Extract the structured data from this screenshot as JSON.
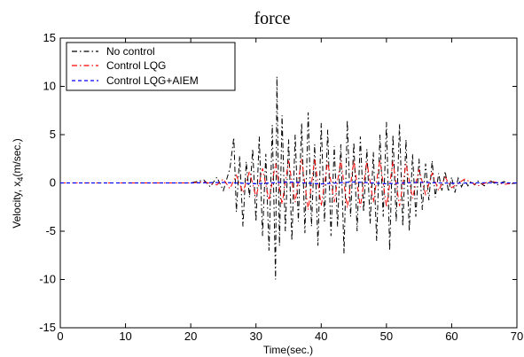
{
  "chart_data": {
    "type": "line",
    "title": "force",
    "xlabel": "Time(sec.)",
    "ylabel_main": "Velocity, x",
    "ylabel_sub": "4",
    "ylabel_unit": "(m/sec.)",
    "xlim": [
      0,
      70
    ],
    "ylim": [
      -15,
      15
    ],
    "x_ticks": [
      0,
      10,
      20,
      30,
      40,
      50,
      60,
      70
    ],
    "y_ticks": [
      -15,
      -10,
      -5,
      0,
      5,
      10,
      15
    ],
    "x_tick_labels": [
      "0",
      "10",
      "20",
      "30",
      "40",
      "50",
      "60",
      "70"
    ],
    "y_tick_labels": [
      "-15",
      "-10",
      "-5",
      "0",
      "5",
      "10",
      "15"
    ],
    "grid": false,
    "legend_position": "top-left",
    "series": [
      {
        "name": "No control",
        "color": "#000000",
        "dash": "dashdot",
        "x": [
          0,
          20,
          22,
          23,
          24,
          25,
          26,
          26.6,
          27,
          27.5,
          28,
          28.5,
          29,
          29.5,
          30,
          30.5,
          31,
          31.5,
          32,
          32.5,
          33,
          33.2,
          33.6,
          34,
          34.5,
          35,
          35.5,
          36,
          36.5,
          37,
          37.5,
          38,
          38.5,
          39,
          39.5,
          40,
          40.5,
          41,
          41.5,
          42,
          42.5,
          43,
          43.5,
          44,
          44.5,
          45,
          45.5,
          46,
          46.5,
          47,
          47.5,
          48,
          48.5,
          49,
          49.5,
          50,
          50.5,
          51,
          51.5,
          52,
          52.5,
          53,
          53.5,
          54,
          54.5,
          55,
          55.5,
          56,
          56.5,
          57,
          57.5,
          58,
          58.5,
          59,
          59.5,
          60,
          60.5,
          61,
          61.5,
          62,
          62.5,
          63,
          63.5,
          64,
          65,
          66,
          67,
          68,
          69,
          70
        ],
        "y": [
          0,
          0,
          0.3,
          -0.4,
          0.6,
          -0.8,
          1.5,
          4.7,
          -3.0,
          2.8,
          -4.5,
          2.2,
          -1.5,
          3.5,
          -4.0,
          4.8,
          -5.5,
          3.0,
          -7.0,
          6.0,
          -10.0,
          11.0,
          -6.5,
          7.0,
          -5.0,
          4.5,
          -6.0,
          5.0,
          -4.0,
          6.2,
          -5.2,
          7.3,
          -4.5,
          4.0,
          -6.5,
          6.2,
          -4.0,
          5.5,
          -5.5,
          3.8,
          -4.5,
          4.0,
          -7.3,
          6.5,
          -3.5,
          4.2,
          -5.0,
          4.8,
          -3.0,
          3.5,
          -4.2,
          3.2,
          -6.0,
          5.0,
          -3.5,
          6.3,
          -7.0,
          5.0,
          -4.0,
          6.1,
          -4.5,
          4.5,
          -5.0,
          3.0,
          -3.5,
          2.5,
          -2.8,
          2.0,
          -1.8,
          2.3,
          -1.5,
          1.0,
          -0.8,
          1.2,
          -0.9,
          0.6,
          -1.0,
          0.5,
          -0.4,
          0.3,
          -0.3,
          0.2,
          -0.2,
          0.2,
          -0.3,
          0.2,
          -0.2,
          0.15,
          -0.1,
          0
        ]
      },
      {
        "name": "Control LQG",
        "color": "#ff0000",
        "dash": "dashdot",
        "x": [
          0,
          20,
          22,
          24,
          25,
          26,
          27,
          28,
          29,
          30,
          31,
          32,
          33,
          34,
          35,
          36,
          37,
          38,
          39,
          40,
          41,
          42,
          43,
          44,
          45,
          46,
          47,
          48,
          49,
          50,
          51,
          52,
          53,
          54,
          55,
          56,
          57,
          58,
          59,
          60,
          62,
          64,
          66,
          68,
          70
        ],
        "y": [
          0,
          0,
          0.1,
          -0.2,
          0.4,
          -0.6,
          0.8,
          -1.0,
          1.2,
          -1.5,
          1.5,
          -1.8,
          2.0,
          -2.2,
          2.3,
          -2.0,
          2.5,
          -2.8,
          2.5,
          -2.4,
          2.2,
          -2.0,
          2.4,
          -2.6,
          2.3,
          -2.5,
          2.2,
          -2.0,
          2.4,
          -2.5,
          2.2,
          -2.4,
          2.0,
          -1.6,
          1.4,
          -1.2,
          1.0,
          -0.8,
          0.6,
          -0.5,
          0.4,
          -0.3,
          0.2,
          -0.15,
          0
        ]
      },
      {
        "name": "Control LQG+AIEM",
        "color": "#0000ff",
        "dash": "dashed",
        "x": [
          0,
          10,
          20,
          25,
          30,
          35,
          40,
          45,
          50,
          55,
          60,
          65,
          70
        ],
        "y": [
          0,
          0,
          0,
          0.05,
          -0.08,
          0.1,
          -0.1,
          0.1,
          -0.08,
          0.06,
          -0.04,
          0.02,
          0
        ]
      }
    ]
  }
}
